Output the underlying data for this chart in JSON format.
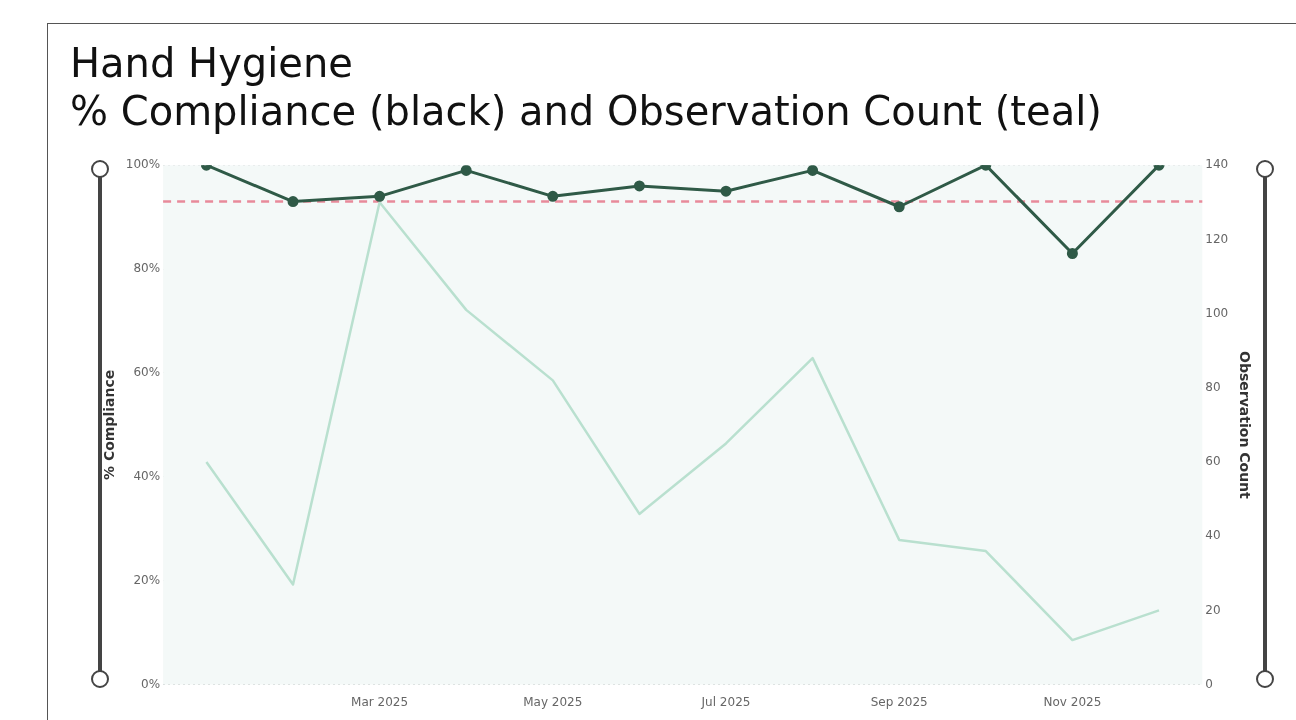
{
  "chart_data": {
    "type": "line",
    "title": "Hand Hygiene",
    "subtitle": "% Compliance (black) and Observation Count (teal)",
    "ylabel": "% Compliance",
    "y2label": "Observation Count",
    "categories": [
      null,
      null,
      "Mar 2025",
      null,
      "May 2025",
      null,
      "Jul 2025",
      null,
      "Sep 2025",
      null,
      "Nov 2025",
      null
    ],
    "series": [
      {
        "color": "#b9e0cf",
        "marker": "none",
        "axis": "y2",
        "values": [
          60,
          27,
          130,
          101,
          82,
          46,
          65,
          88,
          39,
          36,
          12,
          20
        ]
      },
      {
        "color": "#2f5a47",
        "marker": "circle",
        "values": [
          100,
          93,
          94,
          99,
          94,
          96,
          95,
          99,
          92,
          100,
          83,
          100
        ]
      }
    ],
    "ylim": [
      0,
      100
    ],
    "yticks": [
      {
        "value": 0,
        "label": "0%"
      },
      {
        "value": 20,
        "label": "20%"
      },
      {
        "value": 40,
        "label": "40%"
      },
      {
        "value": 60,
        "label": "60%"
      },
      {
        "value": 80,
        "label": "80%"
      },
      {
        "value": 100,
        "label": "100%"
      }
    ],
    "y2lim": [
      0,
      140
    ],
    "y2ticks": [
      0,
      20,
      40,
      60,
      80,
      100,
      120,
      140
    ],
    "ref_lines": [
      {
        "axis": "y",
        "value": 93,
        "color": "#e88a9a",
        "line_style": "dashed"
      }
    ],
    "grid": "y",
    "legend": false
  }
}
